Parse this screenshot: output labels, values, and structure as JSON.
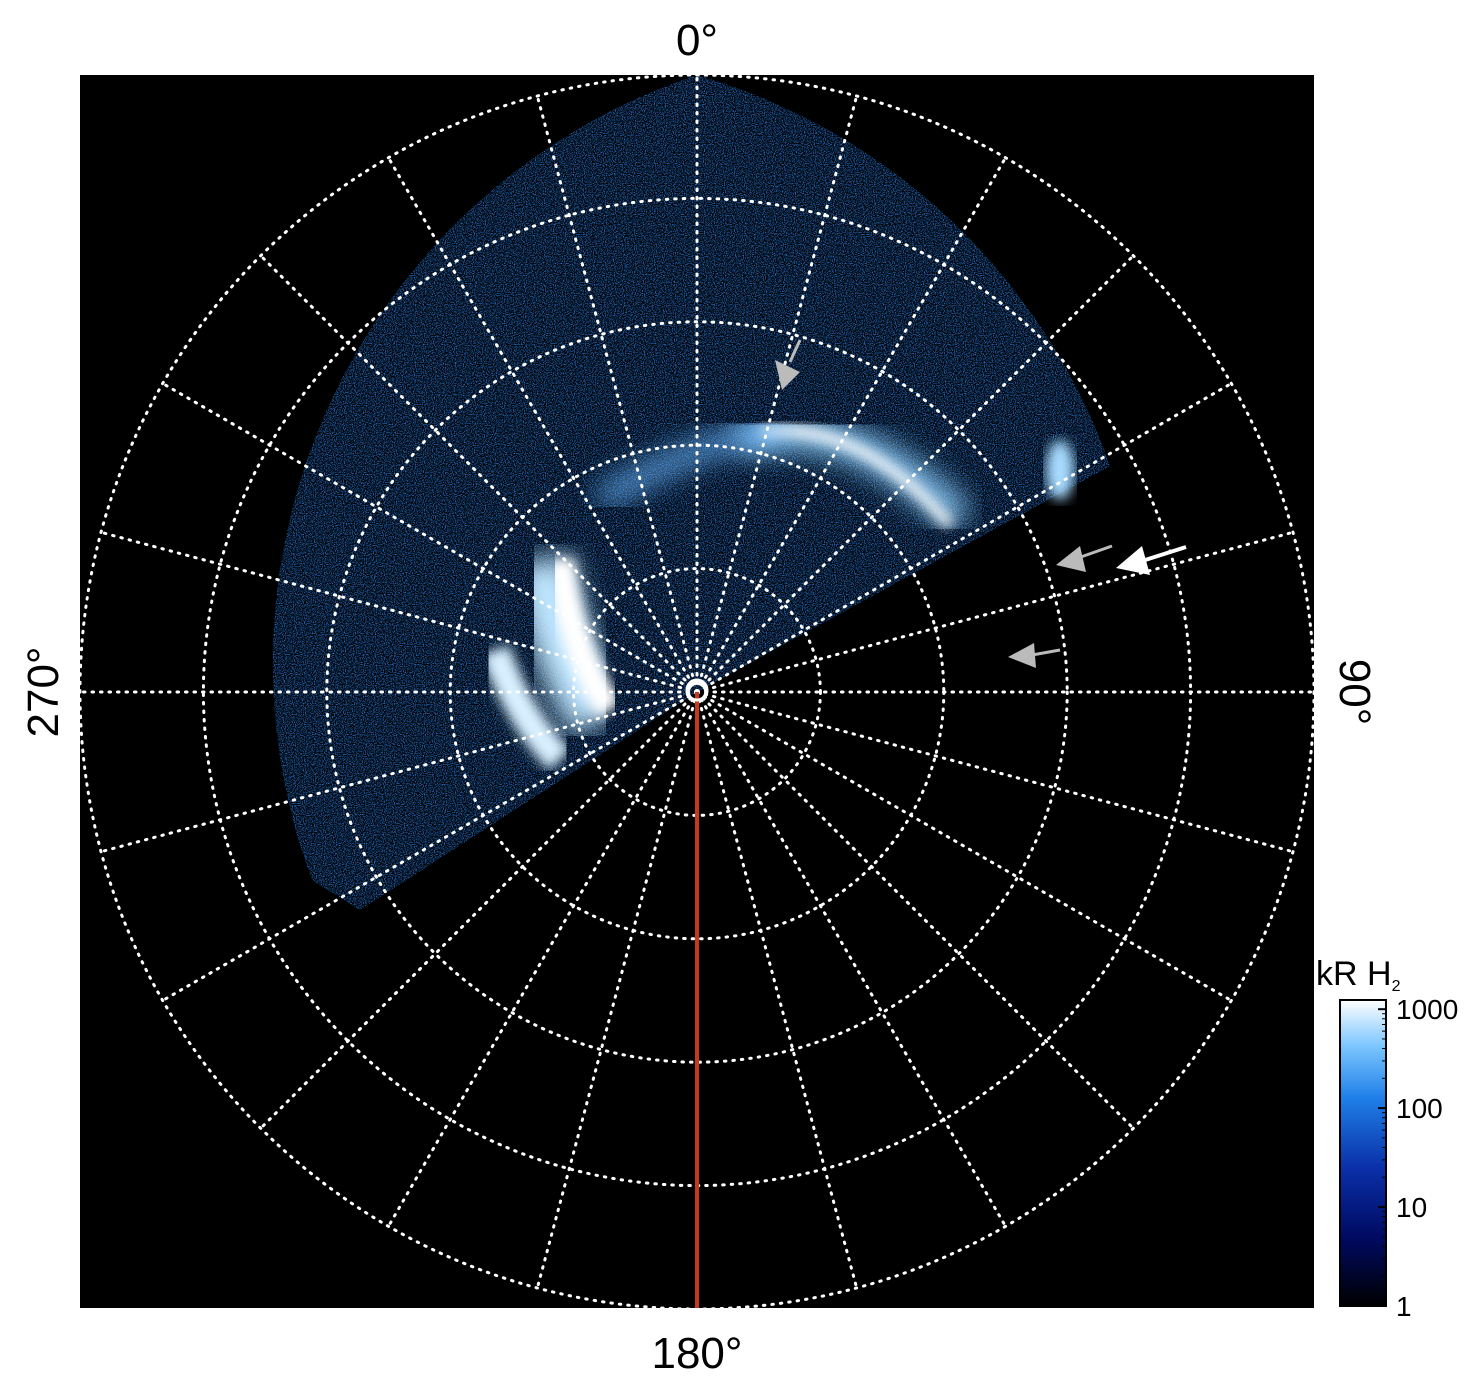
{
  "labels": {
    "top": "0°",
    "right": "90°",
    "bottom": "180°",
    "left": "270°"
  },
  "colorbar": {
    "title_main": "kR H",
    "title_sub": "2",
    "ticks": [
      "1000",
      "100",
      "10",
      "1"
    ],
    "scale": "log",
    "range": [
      1,
      1000
    ],
    "colors": [
      "#000000",
      "#000a60",
      "#0a2fa8",
      "#1f7fe8",
      "#7cc6ff",
      "#ffffff"
    ]
  },
  "colors": {
    "background": "#000000",
    "grid": "#ffffff",
    "meridian_line": "#c8391a",
    "arrow_white": "#ffffff",
    "arrow_grey": "#bbbbbb"
  },
  "grid": {
    "meridian_spacing_deg": 15,
    "ring_count": 5
  }
}
